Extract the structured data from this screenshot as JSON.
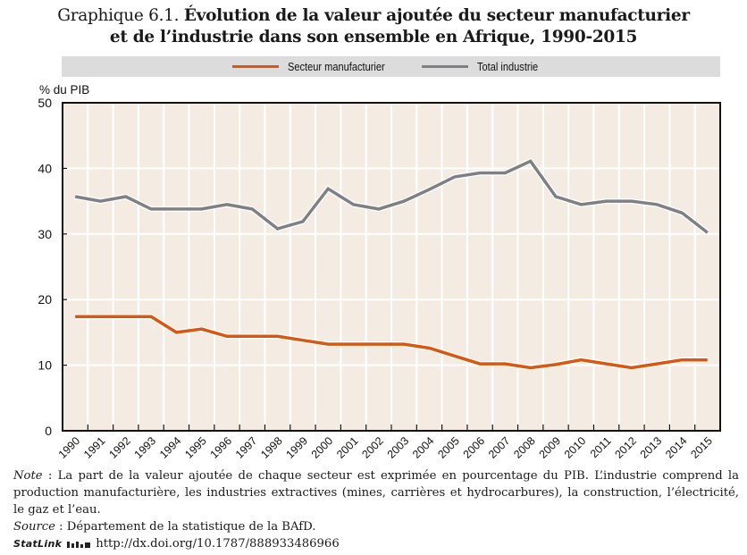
{
  "title": {
    "number": "Graphique 6.1.",
    "line1": "Évolution de la valeur ajoutée du secteur manufacturier",
    "line2": "et de l’industrie dans son ensemble en Afrique, 1990-2015"
  },
  "colors": {
    "manufacturing": "#d9570f",
    "industry": "#808084",
    "plot_bg": "#f4ece3",
    "grid": "#ffffff",
    "legend_bg": "#dcdcdc"
  },
  "chart_data": {
    "type": "line",
    "title": "Évolution de la valeur ajoutée du secteur manufacturier et de l’industrie dans son ensemble en Afrique, 1990-2015",
    "xlabel": "",
    "ylabel": "% du PIB",
    "ylim": [
      0,
      50
    ],
    "yticks": [
      0,
      10,
      20,
      30,
      40,
      50
    ],
    "grid": true,
    "legend_position": "top",
    "categories": [
      "1990",
      "1991",
      "1992",
      "1993",
      "1994",
      "1995",
      "1996",
      "1997",
      "1998",
      "1999",
      "2000",
      "2001",
      "2002",
      "2003",
      "2004",
      "2005",
      "2006",
      "2007",
      "2008",
      "2009",
      "2010",
      "2011",
      "2012",
      "2013",
      "2014",
      "2015"
    ],
    "series": [
      {
        "name": "Secteur manufacturier",
        "color": "#d9570f",
        "values": [
          17.4,
          17.4,
          17.4,
          17.4,
          15.0,
          15.5,
          14.4,
          14.4,
          14.4,
          13.8,
          13.2,
          13.2,
          13.2,
          13.2,
          12.6,
          11.4,
          10.2,
          10.2,
          9.6,
          10.1,
          10.8,
          10.2,
          9.6,
          10.2,
          10.8,
          10.8
        ]
      },
      {
        "name": "Total industrie",
        "color": "#808084",
        "values": [
          35.7,
          35.0,
          35.7,
          33.8,
          33.8,
          33.8,
          34.5,
          33.8,
          30.8,
          31.9,
          36.9,
          34.5,
          33.8,
          35.0,
          36.8,
          38.7,
          39.3,
          39.3,
          41.1,
          35.7,
          34.5,
          35.0,
          35.0,
          34.5,
          33.2,
          30.2
        ]
      }
    ]
  },
  "notes": {
    "note_label": "Note",
    "note_text": " : La part de la valeur ajoutée de chaque secteur est exprimée en pourcentage du PIB. L’industrie comprend la production manufacturière, les industries extractives (mines, carrières et hydrocarbures), la construction, l’électricité, le gaz et l’eau.",
    "source_label": "Source",
    "source_text": " : Département de la statistique de la BAfD.",
    "statlink_label": "StatLink",
    "statlink_url": "http://dx.doi.org/10.1787/888933486966"
  }
}
